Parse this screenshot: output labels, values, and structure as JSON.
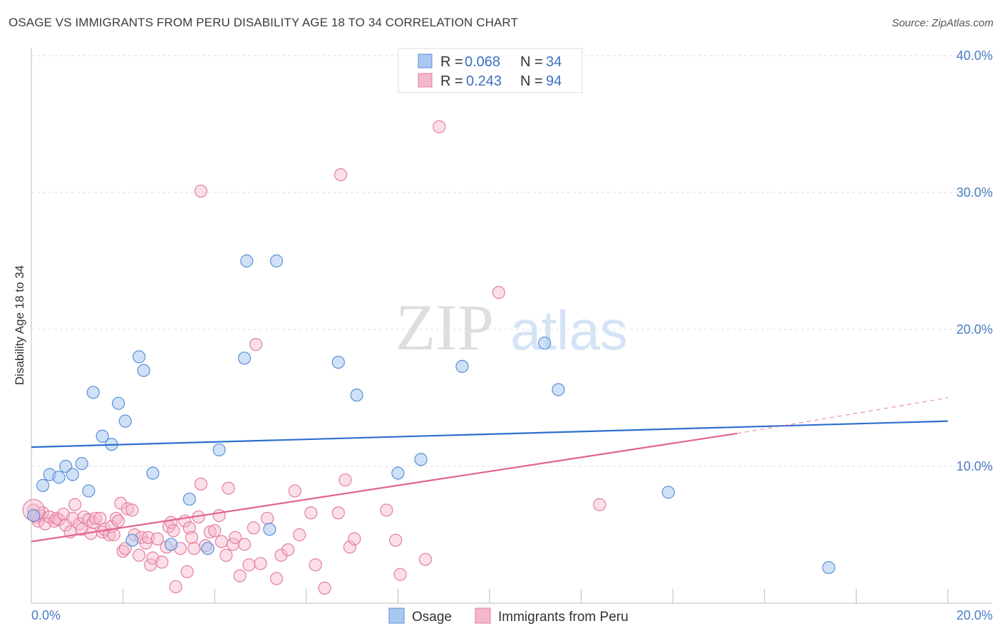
{
  "title": "OSAGE VS IMMIGRANTS FROM PERU DISABILITY AGE 18 TO 34 CORRELATION CHART",
  "source": "Source: ZipAtlas.com",
  "watermark": {
    "zip": "ZIP",
    "atlas": "atlas"
  },
  "colors": {
    "osage_fill": "#a9c8f0",
    "osage_stroke": "#5b8fd6",
    "osage_line": "#2e6fcf",
    "peru_fill": "#f5b8cb",
    "peru_stroke": "#e47ea0",
    "peru_line": "#e0648e",
    "tick_text": "#4a7cc4",
    "grid": "#dddddd"
  },
  "legend": {
    "rows": [
      {
        "r_label": "R = ",
        "r_value": "0.068",
        "n_label": "N = ",
        "n_value": "34"
      },
      {
        "r_label": "R = ",
        "r_value": "0.243",
        "n_label": "N = ",
        "n_value": "94"
      }
    ]
  },
  "bottom_legend": [
    "Osage",
    "Immigrants from Peru"
  ],
  "chart_data": {
    "type": "scatter",
    "title": "OSAGE VS IMMIGRANTS FROM PERU DISABILITY AGE 18 TO 34 CORRELATION CHART",
    "xlabel": "",
    "ylabel": "Disability Age 18 to 34",
    "xlim": [
      0,
      20
    ],
    "ylim": [
      0,
      40
    ],
    "x_tick_labels": [
      "0.0%",
      "20.0%"
    ],
    "y_tick_labels": [
      "10.0%",
      "20.0%",
      "30.0%",
      "40.0%"
    ],
    "y_ticks": [
      10,
      20,
      30,
      40
    ],
    "grid": true,
    "legend_position": "top-center",
    "series": [
      {
        "name": "Osage",
        "r": 0.068,
        "n": 34,
        "trend": {
          "x": [
            0,
            20
          ],
          "y": [
            11.4,
            13.3
          ]
        },
        "points": [
          [
            0.05,
            6.4
          ],
          [
            0.25,
            8.6
          ],
          [
            0.4,
            9.4
          ],
          [
            0.6,
            9.2
          ],
          [
            0.75,
            10.0
          ],
          [
            0.9,
            9.4
          ],
          [
            1.1,
            10.2
          ],
          [
            1.25,
            8.2
          ],
          [
            1.35,
            15.4
          ],
          [
            1.55,
            12.2
          ],
          [
            1.75,
            11.6
          ],
          [
            1.9,
            14.6
          ],
          [
            2.05,
            13.3
          ],
          [
            2.2,
            4.6
          ],
          [
            2.35,
            18.0
          ],
          [
            2.45,
            17.0
          ],
          [
            2.65,
            9.5
          ],
          [
            3.05,
            4.3
          ],
          [
            3.45,
            7.6
          ],
          [
            3.85,
            4.0
          ],
          [
            4.1,
            11.2
          ],
          [
            4.65,
            17.9
          ],
          [
            4.7,
            25.0
          ],
          [
            5.2,
            5.4
          ],
          [
            5.35,
            25.0
          ],
          [
            6.7,
            17.6
          ],
          [
            7.1,
            15.2
          ],
          [
            8.0,
            9.5
          ],
          [
            8.5,
            10.5
          ],
          [
            9.4,
            17.3
          ],
          [
            11.2,
            19.0
          ],
          [
            11.5,
            15.6
          ],
          [
            13.9,
            8.1
          ],
          [
            17.4,
            2.6
          ]
        ]
      },
      {
        "name": "Immigrants from Peru",
        "r": 0.243,
        "n": 94,
        "trend": {
          "x": [
            0,
            15.4
          ],
          "y": [
            4.5,
            12.4
          ]
        },
        "trend_dashed": {
          "x": [
            15.4,
            20
          ],
          "y": [
            12.4,
            15.0
          ]
        },
        "points": [
          [
            0.05,
            6.8
          ],
          [
            0.1,
            6.3
          ],
          [
            0.15,
            6.0
          ],
          [
            0.2,
            6.4
          ],
          [
            0.25,
            6.6
          ],
          [
            0.3,
            5.8
          ],
          [
            0.4,
            6.3
          ],
          [
            0.5,
            6.0
          ],
          [
            0.55,
            6.2
          ],
          [
            0.6,
            6.1
          ],
          [
            0.7,
            6.5
          ],
          [
            0.75,
            5.7
          ],
          [
            0.85,
            5.2
          ],
          [
            0.9,
            6.2
          ],
          [
            0.95,
            7.2
          ],
          [
            1.05,
            5.8
          ],
          [
            1.1,
            5.4
          ],
          [
            1.15,
            6.3
          ],
          [
            1.25,
            6.1
          ],
          [
            1.3,
            5.1
          ],
          [
            1.35,
            5.9
          ],
          [
            1.4,
            6.2
          ],
          [
            1.5,
            6.2
          ],
          [
            1.55,
            5.2
          ],
          [
            1.6,
            5.4
          ],
          [
            1.7,
            5.0
          ],
          [
            1.75,
            5.6
          ],
          [
            1.8,
            5.0
          ],
          [
            1.85,
            6.2
          ],
          [
            1.9,
            6.0
          ],
          [
            1.95,
            7.3
          ],
          [
            2.0,
            3.8
          ],
          [
            2.05,
            4.0
          ],
          [
            2.1,
            6.9
          ],
          [
            2.2,
            6.8
          ],
          [
            2.25,
            5.0
          ],
          [
            2.35,
            3.5
          ],
          [
            2.4,
            4.8
          ],
          [
            2.5,
            4.4
          ],
          [
            2.55,
            4.8
          ],
          [
            2.6,
            2.8
          ],
          [
            2.65,
            3.3
          ],
          [
            2.75,
            4.7
          ],
          [
            2.85,
            3.0
          ],
          [
            2.95,
            4.1
          ],
          [
            3.0,
            5.6
          ],
          [
            3.05,
            5.9
          ],
          [
            3.1,
            5.3
          ],
          [
            3.15,
            1.2
          ],
          [
            3.25,
            4.0
          ],
          [
            3.35,
            6.0
          ],
          [
            3.4,
            2.3
          ],
          [
            3.45,
            5.5
          ],
          [
            3.5,
            4.8
          ],
          [
            3.55,
            4.0
          ],
          [
            3.65,
            6.3
          ],
          [
            3.7,
            8.7
          ],
          [
            3.8,
            4.2
          ],
          [
            3.9,
            5.2
          ],
          [
            4.0,
            5.3
          ],
          [
            4.1,
            6.4
          ],
          [
            4.15,
            4.5
          ],
          [
            4.25,
            3.5
          ],
          [
            4.3,
            8.4
          ],
          [
            4.4,
            4.3
          ],
          [
            4.45,
            4.8
          ],
          [
            4.55,
            2.0
          ],
          [
            4.65,
            4.3
          ],
          [
            4.75,
            2.8
          ],
          [
            4.85,
            5.5
          ],
          [
            4.9,
            18.9
          ],
          [
            5.0,
            2.9
          ],
          [
            5.15,
            6.2
          ],
          [
            5.35,
            1.8
          ],
          [
            5.45,
            3.5
          ],
          [
            5.6,
            3.9
          ],
          [
            5.75,
            8.2
          ],
          [
            5.85,
            5.0
          ],
          [
            6.1,
            6.6
          ],
          [
            6.2,
            2.8
          ],
          [
            6.4,
            1.1
          ],
          [
            6.7,
            6.6
          ],
          [
            6.75,
            31.3
          ],
          [
            6.85,
            9.0
          ],
          [
            6.95,
            4.1
          ],
          [
            7.05,
            4.7
          ],
          [
            3.7,
            30.1
          ],
          [
            7.75,
            6.8
          ],
          [
            7.95,
            4.6
          ],
          [
            8.05,
            2.1
          ],
          [
            8.6,
            3.2
          ],
          [
            8.9,
            34.8
          ],
          [
            10.2,
            22.7
          ],
          [
            12.4,
            7.2
          ]
        ]
      }
    ]
  }
}
